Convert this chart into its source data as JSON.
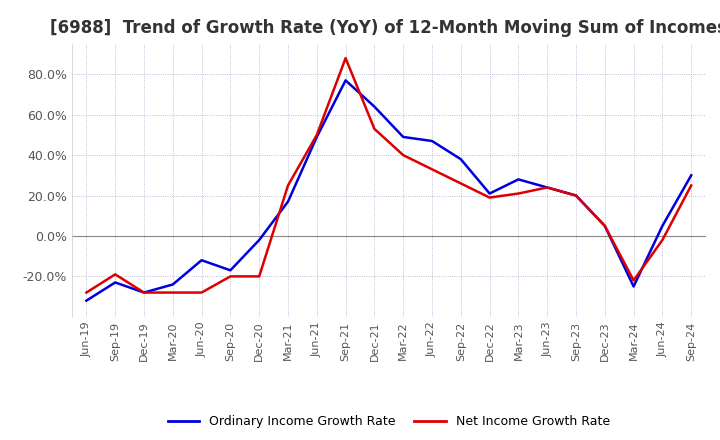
{
  "title": "[6988]  Trend of Growth Rate (YoY) of 12-Month Moving Sum of Incomes",
  "title_fontsize": 12,
  "ylim": [
    -40,
    95
  ],
  "yticks": [
    -20.0,
    0.0,
    20.0,
    40.0,
    60.0,
    80.0
  ],
  "background_color": "#ffffff",
  "grid_color": "#aaaacc",
  "ordinary_color": "#0000dd",
  "net_color": "#dd0000",
  "legend_labels": [
    "Ordinary Income Growth Rate",
    "Net Income Growth Rate"
  ],
  "dates": [
    "Jun-19",
    "Sep-19",
    "Dec-19",
    "Mar-20",
    "Jun-20",
    "Sep-20",
    "Dec-20",
    "Mar-21",
    "Jun-21",
    "Sep-21",
    "Dec-21",
    "Mar-22",
    "Jun-22",
    "Sep-22",
    "Dec-22",
    "Mar-23",
    "Jun-23",
    "Sep-23",
    "Dec-23",
    "Mar-24",
    "Jun-24",
    "Sep-24"
  ],
  "ordinary_values": [
    -32,
    -23,
    -28,
    -24,
    -12,
    -17,
    -2,
    17,
    49,
    77,
    64,
    49,
    47,
    38,
    21,
    28,
    24,
    20,
    5,
    -25,
    5,
    30
  ],
  "net_values": [
    -28,
    -19,
    -28,
    -28,
    -28,
    -20,
    -20,
    25,
    50,
    88,
    53,
    40,
    33,
    26,
    19,
    21,
    24,
    20,
    5,
    -22,
    -2,
    25
  ]
}
